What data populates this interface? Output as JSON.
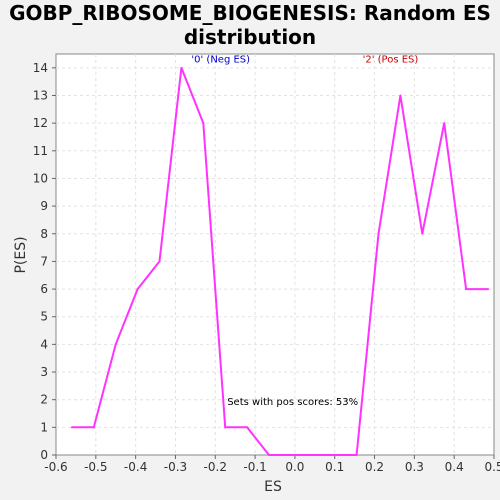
{
  "chart_data": {
    "type": "line",
    "title_line1": "GOBP_RIBOSOME_BIOGENESIS: Random ES",
    "title_line2": "distribution",
    "xlabel": "ES",
    "ylabel": "P(ES)",
    "xlim": [
      -0.6,
      0.5
    ],
    "ylim": [
      0,
      14.5
    ],
    "x_ticks": [
      -0.6,
      -0.5,
      -0.4,
      -0.3,
      -0.2,
      -0.1,
      0.0,
      0.1,
      0.2,
      0.3,
      0.4,
      0.5
    ],
    "x_tick_labels": [
      "-0.6",
      "-0.5",
      "-0.4",
      "-0.3",
      "-0.2",
      "-0.1",
      "0.0",
      "0.1",
      "0.2",
      "0.3",
      "0.4",
      "0.5"
    ],
    "y_ticks": [
      0,
      1,
      2,
      3,
      4,
      5,
      6,
      7,
      8,
      9,
      10,
      11,
      12,
      13,
      14
    ],
    "y_tick_labels": [
      "0",
      "1",
      "2",
      "3",
      "4",
      "5",
      "6",
      "7",
      "8",
      "9",
      "10",
      "11",
      "12",
      "13",
      "14"
    ],
    "grid": true,
    "series": [
      {
        "color": "#ff33ff",
        "x": [
          -0.56,
          -0.505,
          -0.45,
          -0.395,
          -0.34,
          -0.285,
          -0.23,
          -0.175,
          -0.12,
          -0.065,
          -0.01,
          0.045,
          0.1,
          0.155,
          0.21,
          0.265,
          0.32,
          0.375,
          0.43,
          0.485
        ],
        "y": [
          1,
          1,
          4,
          6,
          7,
          14,
          12,
          1,
          1,
          0,
          0,
          0,
          0,
          0,
          8,
          13,
          8,
          12,
          6,
          6
        ]
      }
    ],
    "annotations": [
      {
        "text": "'0' (Neg ES)",
        "color": "#0000cc",
        "x": -0.26,
        "y": 14.2
      },
      {
        "text": "'2' (Pos ES)",
        "color": "#cc0000",
        "x": 0.17,
        "y": 14.2
      },
      {
        "text": "Sets with pos scores: 53%",
        "color": "#000000",
        "x": -0.17,
        "y": 1.8
      }
    ]
  }
}
